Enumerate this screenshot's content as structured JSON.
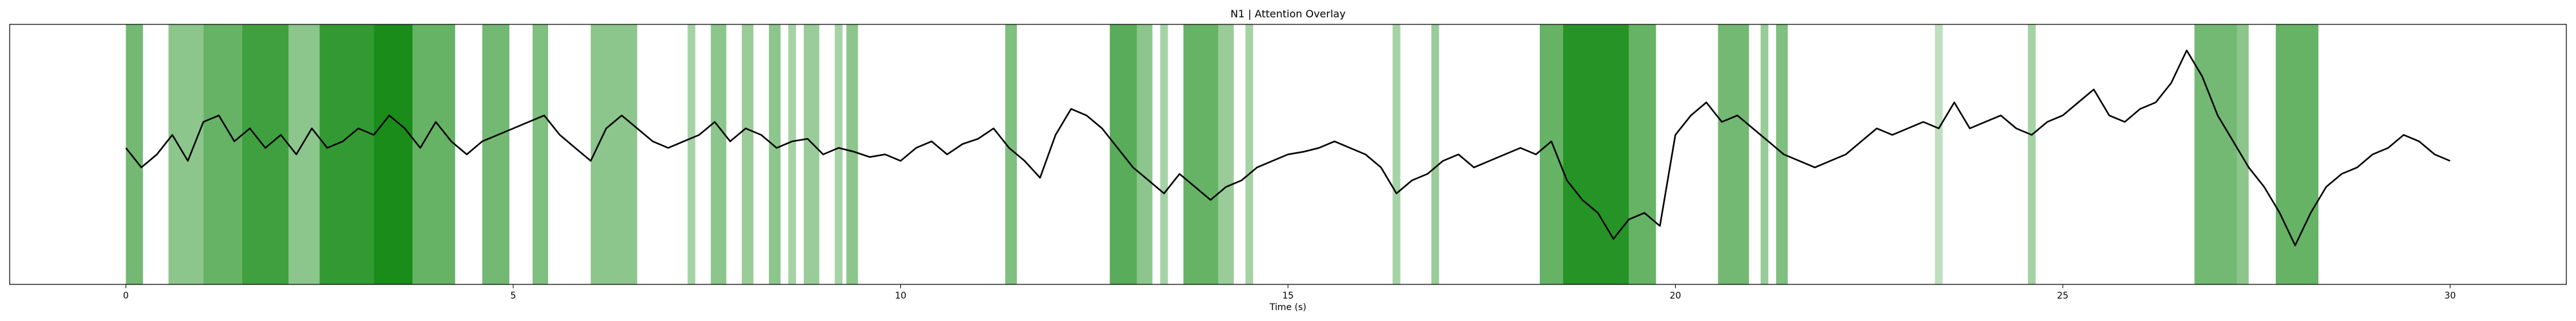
{
  "chart_data": {
    "type": "line",
    "title": "N1 | Attention Overlay",
    "xlabel": "Time (s)",
    "ylabel": "",
    "xlim": [
      -1.5,
      31.5
    ],
    "ylim": [
      -1.0,
      1.0
    ],
    "x_ticks": [
      0,
      5,
      10,
      15,
      20,
      25,
      30
    ],
    "x_tick_labels": [
      "0",
      "5",
      "10",
      "15",
      "20",
      "25",
      "30"
    ],
    "y_ticks": [],
    "grid": false,
    "legend": "none",
    "colors": {
      "signal": "#000000",
      "attention": "#008000",
      "frame": "#000000"
    },
    "attention_intervals": [
      {
        "start": 0.0,
        "end": 0.22,
        "opacity": 0.55
      },
      {
        "start": 0.55,
        "end": 1.0,
        "opacity": 0.45
      },
      {
        "start": 1.0,
        "end": 1.5,
        "opacity": 0.6
      },
      {
        "start": 1.5,
        "end": 2.1,
        "opacity": 0.75
      },
      {
        "start": 2.1,
        "end": 2.5,
        "opacity": 0.45
      },
      {
        "start": 2.5,
        "end": 3.2,
        "opacity": 0.8
      },
      {
        "start": 3.2,
        "end": 3.7,
        "opacity": 0.9
      },
      {
        "start": 3.7,
        "end": 4.25,
        "opacity": 0.6
      },
      {
        "start": 4.6,
        "end": 4.95,
        "opacity": 0.55
      },
      {
        "start": 5.25,
        "end": 5.45,
        "opacity": 0.5
      },
      {
        "start": 6.0,
        "end": 6.6,
        "opacity": 0.45
      },
      {
        "start": 7.25,
        "end": 7.35,
        "opacity": 0.35
      },
      {
        "start": 7.55,
        "end": 7.75,
        "opacity": 0.45
      },
      {
        "start": 7.95,
        "end": 8.1,
        "opacity": 0.4
      },
      {
        "start": 8.3,
        "end": 8.45,
        "opacity": 0.45
      },
      {
        "start": 8.55,
        "end": 8.65,
        "opacity": 0.35
      },
      {
        "start": 8.75,
        "end": 8.95,
        "opacity": 0.4
      },
      {
        "start": 9.15,
        "end": 9.25,
        "opacity": 0.35
      },
      {
        "start": 9.3,
        "end": 9.45,
        "opacity": 0.45
      },
      {
        "start": 11.35,
        "end": 11.5,
        "opacity": 0.5
      },
      {
        "start": 12.7,
        "end": 13.05,
        "opacity": 0.65
      },
      {
        "start": 13.05,
        "end": 13.25,
        "opacity": 0.45
      },
      {
        "start": 13.35,
        "end": 13.45,
        "opacity": 0.35
      },
      {
        "start": 13.65,
        "end": 14.1,
        "opacity": 0.6
      },
      {
        "start": 14.1,
        "end": 14.3,
        "opacity": 0.4
      },
      {
        "start": 14.45,
        "end": 14.55,
        "opacity": 0.35
      },
      {
        "start": 16.35,
        "end": 16.45,
        "opacity": 0.35
      },
      {
        "start": 16.85,
        "end": 16.95,
        "opacity": 0.4
      },
      {
        "start": 18.25,
        "end": 18.55,
        "opacity": 0.6
      },
      {
        "start": 18.55,
        "end": 19.4,
        "opacity": 0.85
      },
      {
        "start": 19.4,
        "end": 19.75,
        "opacity": 0.6
      },
      {
        "start": 20.55,
        "end": 20.95,
        "opacity": 0.55
      },
      {
        "start": 21.1,
        "end": 21.2,
        "opacity": 0.4
      },
      {
        "start": 21.3,
        "end": 21.45,
        "opacity": 0.5
      },
      {
        "start": 23.35,
        "end": 23.45,
        "opacity": 0.25
      },
      {
        "start": 24.55,
        "end": 24.65,
        "opacity": 0.35
      },
      {
        "start": 26.7,
        "end": 27.25,
        "opacity": 0.55
      },
      {
        "start": 27.25,
        "end": 27.4,
        "opacity": 0.45
      },
      {
        "start": 27.75,
        "end": 28.3,
        "opacity": 0.6
      }
    ],
    "series": [
      {
        "x": [
          0.0,
          0.2,
          0.4,
          0.6,
          0.8,
          1.0,
          1.2,
          1.4,
          1.6,
          1.8,
          2.0,
          2.2,
          2.4,
          2.6,
          2.8,
          3.0,
          3.2,
          3.4,
          3.6,
          3.8,
          4.0,
          4.2,
          4.4,
          4.6,
          4.8,
          5.0,
          5.2,
          5.4,
          5.6,
          5.8,
          6.0,
          6.2,
          6.4,
          6.6,
          6.8,
          7.0,
          7.2,
          7.4,
          7.6,
          7.8,
          8.0,
          8.2,
          8.4,
          8.6,
          8.8,
          9.0,
          9.2,
          9.4,
          9.6,
          9.8,
          10.0,
          10.2,
          10.4,
          10.6,
          10.8,
          11.0,
          11.2,
          11.4,
          11.6,
          11.8,
          12.0,
          12.2,
          12.4,
          12.6,
          12.8,
          13.0,
          13.2,
          13.4,
          13.6,
          13.8,
          14.0,
          14.2,
          14.4,
          14.6,
          14.8,
          15.0,
          15.2,
          15.4,
          15.6,
          15.8,
          16.0,
          16.2,
          16.4,
          16.6,
          16.8,
          17.0,
          17.2,
          17.4,
          17.6,
          17.8,
          18.0,
          18.2,
          18.4,
          18.6,
          18.8,
          19.0,
          19.2,
          19.4,
          19.6,
          19.8,
          20.0,
          20.2,
          20.4,
          20.6,
          20.8,
          21.0,
          21.2,
          21.4,
          21.6,
          21.8,
          22.0,
          22.2,
          22.4,
          22.6,
          22.8,
          23.0,
          23.2,
          23.4,
          23.6,
          23.8,
          24.0,
          24.2,
          24.4,
          24.6,
          24.8,
          25.0,
          25.2,
          25.4,
          25.6,
          25.8,
          26.0,
          26.2,
          26.4,
          26.6,
          26.8,
          27.0,
          27.2,
          27.4,
          27.6,
          27.8,
          28.0,
          28.2,
          28.4,
          28.6,
          28.8,
          29.0,
          29.2,
          29.4,
          29.6,
          29.8,
          30.0
        ],
        "values": [
          0.05,
          -0.1,
          0.0,
          0.15,
          -0.05,
          0.25,
          0.3,
          0.1,
          0.2,
          0.05,
          0.15,
          0.0,
          0.2,
          0.05,
          0.1,
          0.2,
          0.15,
          0.3,
          0.2,
          0.05,
          0.25,
          0.1,
          0.0,
          0.1,
          0.15,
          0.2,
          0.25,
          0.3,
          0.15,
          0.05,
          -0.05,
          0.2,
          0.3,
          0.2,
          0.1,
          0.05,
          0.1,
          0.15,
          0.25,
          0.1,
          0.2,
          0.15,
          0.05,
          0.1,
          0.12,
          0.0,
          0.05,
          0.02,
          -0.02,
          0.0,
          -0.05,
          0.05,
          0.1,
          0.0,
          0.08,
          0.12,
          0.2,
          0.05,
          -0.05,
          -0.18,
          0.15,
          0.35,
          0.3,
          0.2,
          0.05,
          -0.1,
          -0.2,
          -0.3,
          -0.15,
          -0.25,
          -0.35,
          -0.25,
          -0.2,
          -0.1,
          -0.05,
          0.0,
          0.02,
          0.05,
          0.1,
          0.05,
          0.0,
          -0.1,
          -0.3,
          -0.2,
          -0.15,
          -0.05,
          0.0,
          -0.1,
          -0.05,
          0.0,
          0.05,
          0.0,
          0.1,
          -0.2,
          -0.35,
          -0.45,
          -0.65,
          -0.5,
          -0.45,
          -0.55,
          0.15,
          0.3,
          0.4,
          0.25,
          0.3,
          0.2,
          0.1,
          0.0,
          -0.05,
          -0.1,
          -0.05,
          0.0,
          0.1,
          0.2,
          0.15,
          0.2,
          0.25,
          0.2,
          0.4,
          0.2,
          0.25,
          0.3,
          0.2,
          0.15,
          0.25,
          0.3,
          0.4,
          0.5,
          0.3,
          0.25,
          0.35,
          0.4,
          0.55,
          0.8,
          0.6,
          0.3,
          0.1,
          -0.1,
          -0.25,
          -0.45,
          -0.7,
          -0.45,
          -0.25,
          -0.15,
          -0.1,
          0.0,
          0.05,
          0.15,
          0.1,
          0.0,
          -0.05
        ]
      }
    ]
  }
}
